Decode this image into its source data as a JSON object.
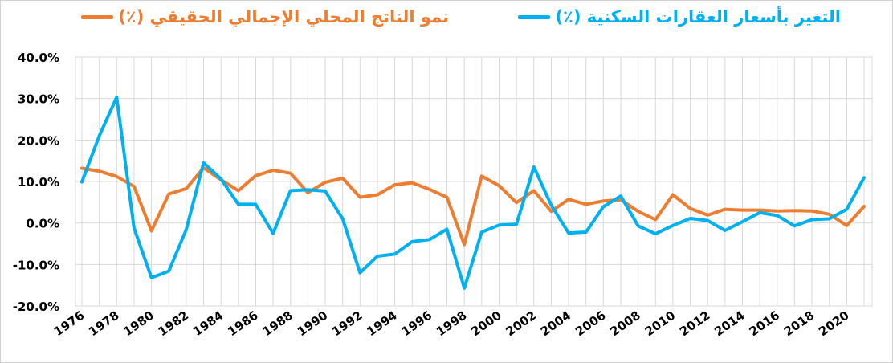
{
  "chart_data": {
    "type": "line",
    "title": "",
    "xlabel": "",
    "ylabel": "",
    "ylim": [
      -20,
      40
    ],
    "y_ticks": [
      -20,
      -10,
      0,
      10,
      20,
      30,
      40
    ],
    "y_tick_labels": [
      "-20.0%",
      "-10.0%",
      "0.0%",
      "10.0%",
      "20.0%",
      "30.0%",
      "40.0%"
    ],
    "x_tick_labels": [
      "1976",
      "1978",
      "1980",
      "1982",
      "1984",
      "1986",
      "1988",
      "1990",
      "1992",
      "1994",
      "1996",
      "1998",
      "2000",
      "2002",
      "2004",
      "2006",
      "2008",
      "2010",
      "2012",
      "2014",
      "2016",
      "2018",
      "2020"
    ],
    "x": [
      1976,
      1977,
      1978,
      1979,
      1980,
      1981,
      1982,
      1983,
      1984,
      1985,
      1986,
      1987,
      1988,
      1989,
      1990,
      1991,
      1992,
      1993,
      1994,
      1995,
      1996,
      1997,
      1998,
      1999,
      2000,
      2001,
      2002,
      2003,
      2004,
      2005,
      2006,
      2007,
      2008,
      2009,
      2010,
      2011,
      2012,
      2013,
      2014,
      2015,
      2016,
      2017,
      2018,
      2019,
      2020,
      2021
    ],
    "grid": true,
    "legend_position": "top",
    "series": [
      {
        "name": "التغير بأسعار العقارات السكنية (٪)",
        "color": "#00b0f0",
        "values": [
          9.9,
          21.0,
          30.3,
          -1.2,
          -13.2,
          -11.6,
          -1.6,
          14.5,
          10.6,
          4.5,
          4.5,
          -2.5,
          7.8,
          8.0,
          7.7,
          1.0,
          -12.0,
          -8.0,
          -7.5,
          -4.5,
          -4.0,
          -1.5,
          -15.7,
          -2.2,
          -0.5,
          -0.3,
          13.5,
          4.3,
          -2.4,
          -2.2,
          3.9,
          6.5,
          -0.7,
          -2.6,
          -0.6,
          1.1,
          0.6,
          -1.8,
          0.3,
          2.5,
          1.8,
          -0.7,
          0.8,
          1.0,
          3.3,
          10.9
        ]
      },
      {
        "name": "نمو الناتج المحلي الإجمالي الحقيقي (٪)",
        "color": "#ed7d31",
        "values": [
          13.2,
          12.5,
          11.2,
          8.8,
          -1.9,
          7.0,
          8.3,
          13.3,
          10.4,
          7.8,
          11.4,
          12.7,
          12.0,
          7.3,
          9.8,
          10.8,
          6.2,
          6.8,
          9.2,
          9.7,
          8.1,
          6.2,
          -5.2,
          11.3,
          9.0,
          4.9,
          7.8,
          2.8,
          5.7,
          4.5,
          5.3,
          5.6,
          2.8,
          0.8,
          6.8,
          3.5,
          1.9,
          3.3,
          3.1,
          3.1,
          2.9,
          3.0,
          2.9,
          2.1,
          -0.6,
          4.0
        ]
      }
    ]
  }
}
